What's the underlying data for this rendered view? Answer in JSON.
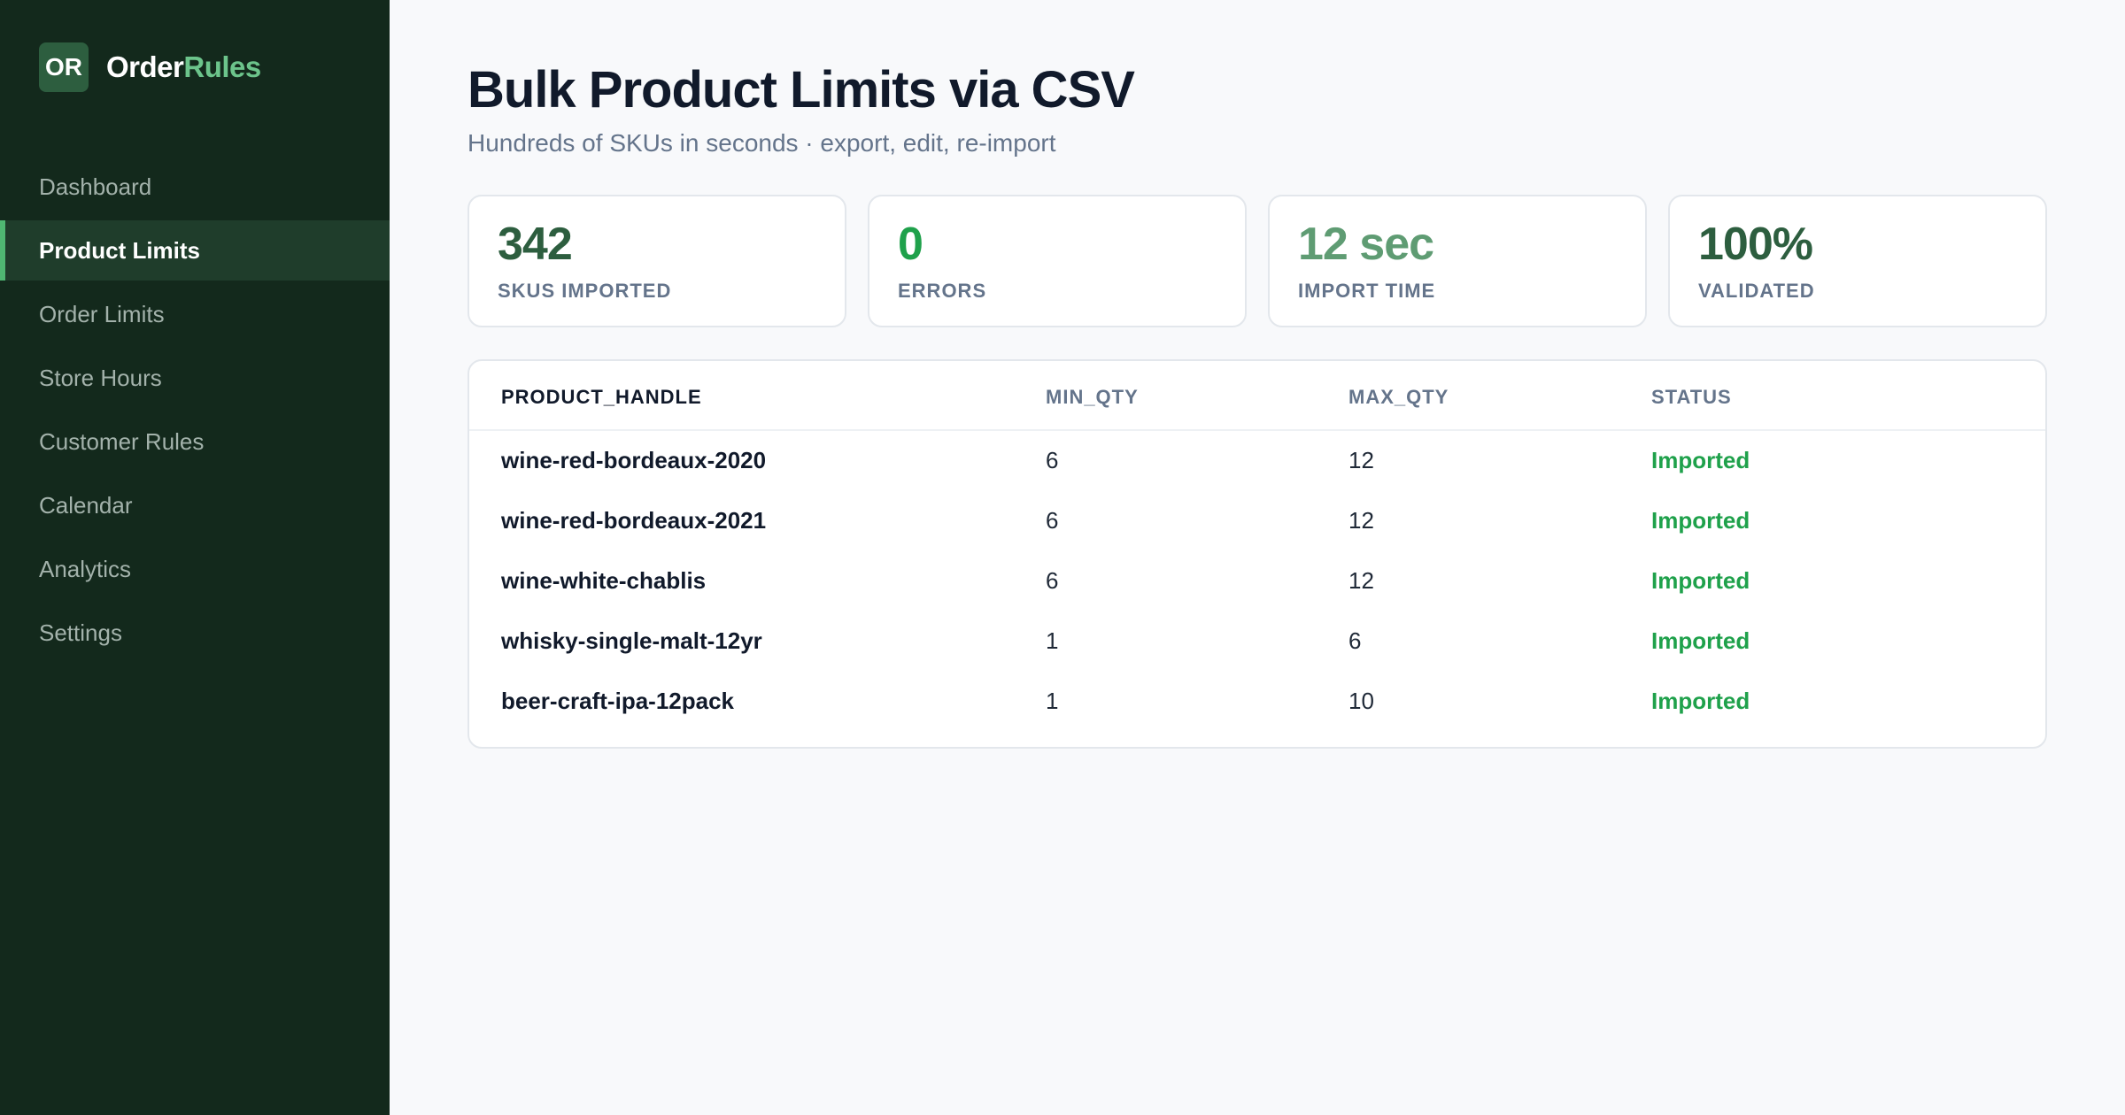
{
  "brand": {
    "logo": "OR",
    "name_main": "Order",
    "name_accent": "Rules"
  },
  "sidebar": {
    "items": [
      {
        "label": "Dashboard"
      },
      {
        "label": "Product Limits"
      },
      {
        "label": "Order Limits"
      },
      {
        "label": "Store Hours"
      },
      {
        "label": "Customer Rules"
      },
      {
        "label": "Calendar"
      },
      {
        "label": "Analytics"
      },
      {
        "label": "Settings"
      }
    ],
    "active_index": 1
  },
  "header": {
    "title": "Bulk Product Limits via CSV",
    "subtitle": "Hundreds of SKUs in seconds · export, edit, re-import"
  },
  "stats": [
    {
      "value": "342",
      "label": "SKUS IMPORTED",
      "color": "#2d5e3f"
    },
    {
      "value": "0",
      "label": "ERRORS",
      "color": "#1fa14b"
    },
    {
      "value": "12 sec",
      "label": "IMPORT TIME",
      "color": "#5f9c73"
    },
    {
      "value": "100%",
      "label": "VALIDATED",
      "color": "#2d5e3f"
    }
  ],
  "table": {
    "columns": [
      "PRODUCT_HANDLE",
      "MIN_QTY",
      "MAX_QTY",
      "STATUS"
    ],
    "rows": [
      {
        "handle": "wine-red-bordeaux-2020",
        "min": "6",
        "max": "12",
        "status": "Imported"
      },
      {
        "handle": "wine-red-bordeaux-2021",
        "min": "6",
        "max": "12",
        "status": "Imported"
      },
      {
        "handle": "wine-white-chablis",
        "min": "6",
        "max": "12",
        "status": "Imported"
      },
      {
        "handle": "whisky-single-malt-12yr",
        "min": "1",
        "max": "6",
        "status": "Imported"
      },
      {
        "handle": "beer-craft-ipa-12pack",
        "min": "1",
        "max": "10",
        "status": "Imported"
      }
    ]
  },
  "colors": {
    "sidebar_bg": "#13291c",
    "accent": "#4fb772",
    "status_ok": "#1fa14b"
  }
}
